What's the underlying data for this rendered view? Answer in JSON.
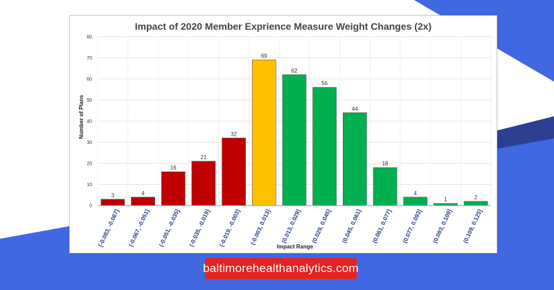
{
  "colors": {
    "negative_bar": "#c00000",
    "neutral_bar": "#ffc000",
    "positive_bar": "#00b050",
    "accent_blue": "#4068e0",
    "accent_dark_blue": "#2c3f93",
    "badge_red": "#e5221f"
  },
  "site": {
    "label": "baltimorehealthanalytics.com"
  },
  "chart_data": {
    "type": "bar",
    "title": "Impact of 2020 Member Exprience Measure Weight Changes (2x)",
    "xlabel": "Impact Range",
    "ylabel": "Number of Plans",
    "ylim": [
      0,
      80
    ],
    "yticks": [
      0,
      10,
      20,
      30,
      40,
      50,
      60,
      70,
      80
    ],
    "grid": true,
    "categories": [
      "[-0.083, -0.067]",
      "(-0.067, -0.051]",
      "(-0.051, -0.035]",
      "(-0.035, -0.019]",
      "(-0.019, -0.003]",
      "(-0.003, 0.013]",
      "(0.013, 0.029]",
      "(0.029, 0.045]",
      "(0.045, 0.061]",
      "(0.061, 0.077]",
      "(0.077, 0.093]",
      "(0.093, 0.109]",
      "(0.109, 0.125]"
    ],
    "values": [
      3,
      4,
      16,
      21,
      32,
      69,
      62,
      56,
      44,
      18,
      4,
      1,
      2
    ],
    "bar_color_groups": [
      "negative",
      "negative",
      "negative",
      "negative",
      "negative",
      "neutral",
      "positive",
      "positive",
      "positive",
      "positive",
      "positive",
      "positive",
      "positive"
    ]
  }
}
